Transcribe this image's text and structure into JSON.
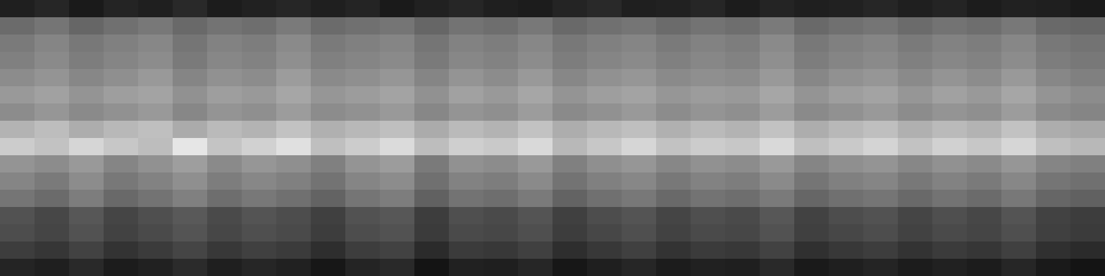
{
  "chart_data": {
    "type": "heatmap",
    "color": "gray",
    "tick_labels": false,
    "zlim": [
      0,
      1
    ],
    "cells": [
      [
        0.12,
        0.15,
        0.1,
        0.14,
        0.12,
        0.16,
        0.11,
        0.13,
        0.15,
        0.12,
        0.14,
        0.1,
        0.13,
        0.15,
        0.12,
        0.11,
        0.14,
        0.16,
        0.12,
        0.13,
        0.15,
        0.11,
        0.14,
        0.12,
        0.13,
        0.15,
        0.12,
        0.14,
        0.11,
        0.13,
        0.12,
        0.1
      ],
      [
        0.42,
        0.46,
        0.4,
        0.44,
        0.47,
        0.41,
        0.45,
        0.43,
        0.48,
        0.42,
        0.44,
        0.46,
        0.4,
        0.45,
        0.43,
        0.47,
        0.41,
        0.44,
        0.46,
        0.42,
        0.45,
        0.43,
        0.48,
        0.41,
        0.44,
        0.46,
        0.42,
        0.45,
        0.43,
        0.47,
        0.41,
        0.4
      ],
      [
        0.48,
        0.52,
        0.47,
        0.5,
        0.53,
        0.46,
        0.51,
        0.49,
        0.54,
        0.48,
        0.5,
        0.52,
        0.46,
        0.51,
        0.49,
        0.53,
        0.47,
        0.5,
        0.52,
        0.48,
        0.51,
        0.49,
        0.54,
        0.47,
        0.5,
        0.52,
        0.48,
        0.51,
        0.49,
        0.53,
        0.47,
        0.45
      ],
      [
        0.5,
        0.54,
        0.49,
        0.52,
        0.55,
        0.48,
        0.53,
        0.51,
        0.56,
        0.5,
        0.52,
        0.54,
        0.48,
        0.53,
        0.51,
        0.55,
        0.49,
        0.52,
        0.54,
        0.5,
        0.53,
        0.51,
        0.56,
        0.49,
        0.52,
        0.54,
        0.5,
        0.53,
        0.51,
        0.55,
        0.49,
        0.47
      ],
      [
        0.55,
        0.58,
        0.53,
        0.56,
        0.6,
        0.52,
        0.57,
        0.55,
        0.61,
        0.54,
        0.56,
        0.59,
        0.52,
        0.58,
        0.55,
        0.6,
        0.53,
        0.57,
        0.59,
        0.54,
        0.56,
        0.55,
        0.6,
        0.53,
        0.57,
        0.59,
        0.54,
        0.58,
        0.55,
        0.6,
        0.53,
        0.5
      ],
      [
        0.6,
        0.63,
        0.58,
        0.62,
        0.64,
        0.57,
        0.62,
        0.6,
        0.65,
        0.59,
        0.61,
        0.64,
        0.57,
        0.63,
        0.6,
        0.65,
        0.58,
        0.62,
        0.64,
        0.59,
        0.61,
        0.6,
        0.65,
        0.58,
        0.62,
        0.64,
        0.59,
        0.63,
        0.6,
        0.65,
        0.58,
        0.55
      ],
      [
        0.55,
        0.59,
        0.54,
        0.57,
        0.6,
        0.53,
        0.58,
        0.56,
        0.61,
        0.55,
        0.57,
        0.6,
        0.53,
        0.58,
        0.56,
        0.61,
        0.54,
        0.57,
        0.6,
        0.55,
        0.58,
        0.56,
        0.61,
        0.54,
        0.57,
        0.6,
        0.55,
        0.58,
        0.56,
        0.61,
        0.54,
        0.52
      ],
      [
        0.7,
        0.74,
        0.68,
        0.72,
        0.75,
        0.67,
        0.73,
        0.7,
        0.76,
        0.69,
        0.72,
        0.75,
        0.67,
        0.73,
        0.7,
        0.76,
        0.68,
        0.72,
        0.75,
        0.69,
        0.73,
        0.7,
        0.76,
        0.68,
        0.72,
        0.75,
        0.69,
        0.73,
        0.7,
        0.76,
        0.68,
        0.66
      ],
      [
        0.8,
        0.76,
        0.84,
        0.78,
        0.74,
        0.9,
        0.77,
        0.82,
        0.88,
        0.75,
        0.8,
        0.86,
        0.74,
        0.81,
        0.79,
        0.85,
        0.72,
        0.78,
        0.84,
        0.76,
        0.8,
        0.78,
        0.85,
        0.75,
        0.79,
        0.83,
        0.76,
        0.82,
        0.78,
        0.84,
        0.75,
        0.72
      ],
      [
        0.58,
        0.55,
        0.6,
        0.52,
        0.57,
        0.62,
        0.54,
        0.59,
        0.56,
        0.5,
        0.58,
        0.61,
        0.48,
        0.57,
        0.55,
        0.6,
        0.5,
        0.56,
        0.59,
        0.53,
        0.57,
        0.55,
        0.6,
        0.52,
        0.56,
        0.58,
        0.53,
        0.57,
        0.54,
        0.59,
        0.52,
        0.5
      ],
      [
        0.52,
        0.48,
        0.55,
        0.47,
        0.51,
        0.56,
        0.49,
        0.53,
        0.5,
        0.45,
        0.52,
        0.55,
        0.44,
        0.51,
        0.49,
        0.54,
        0.45,
        0.5,
        0.53,
        0.47,
        0.51,
        0.49,
        0.54,
        0.46,
        0.5,
        0.52,
        0.47,
        0.51,
        0.48,
        0.53,
        0.46,
        0.44
      ],
      [
        0.46,
        0.42,
        0.49,
        0.41,
        0.45,
        0.5,
        0.43,
        0.47,
        0.44,
        0.39,
        0.46,
        0.49,
        0.38,
        0.45,
        0.43,
        0.48,
        0.39,
        0.44,
        0.47,
        0.41,
        0.45,
        0.43,
        0.48,
        0.4,
        0.44,
        0.46,
        0.41,
        0.45,
        0.42,
        0.47,
        0.4,
        0.38
      ],
      [
        0.32,
        0.28,
        0.34,
        0.27,
        0.31,
        0.35,
        0.29,
        0.33,
        0.3,
        0.25,
        0.32,
        0.34,
        0.24,
        0.31,
        0.29,
        0.33,
        0.25,
        0.3,
        0.33,
        0.27,
        0.31,
        0.29,
        0.34,
        0.26,
        0.3,
        0.32,
        0.27,
        0.31,
        0.28,
        0.33,
        0.26,
        0.24
      ],
      [
        0.3,
        0.27,
        0.32,
        0.26,
        0.29,
        0.33,
        0.28,
        0.31,
        0.29,
        0.24,
        0.3,
        0.32,
        0.23,
        0.29,
        0.28,
        0.31,
        0.24,
        0.28,
        0.31,
        0.26,
        0.29,
        0.28,
        0.32,
        0.25,
        0.28,
        0.3,
        0.26,
        0.29,
        0.27,
        0.31,
        0.25,
        0.23
      ],
      [
        0.24,
        0.21,
        0.26,
        0.2,
        0.23,
        0.27,
        0.22,
        0.25,
        0.23,
        0.18,
        0.24,
        0.26,
        0.17,
        0.23,
        0.22,
        0.25,
        0.18,
        0.22,
        0.25,
        0.2,
        0.23,
        0.22,
        0.26,
        0.19,
        0.22,
        0.24,
        0.2,
        0.23,
        0.21,
        0.25,
        0.19,
        0.17
      ],
      [
        0.14,
        0.12,
        0.16,
        0.11,
        0.13,
        0.17,
        0.12,
        0.15,
        0.13,
        0.09,
        0.14,
        0.16,
        0.08,
        0.13,
        0.12,
        0.15,
        0.09,
        0.12,
        0.15,
        0.11,
        0.13,
        0.12,
        0.16,
        0.1,
        0.12,
        0.14,
        0.11,
        0.13,
        0.11,
        0.15,
        0.1,
        0.08
      ]
    ]
  }
}
